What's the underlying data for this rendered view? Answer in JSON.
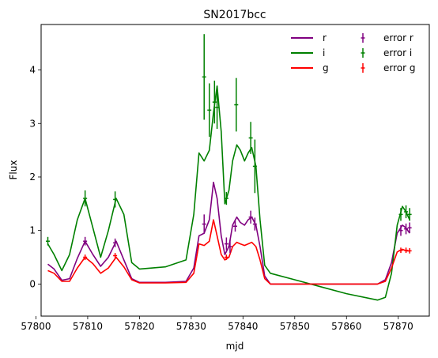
{
  "chart_data": {
    "type": "line",
    "title": "SN2017bcc",
    "xlabel": "mjd",
    "ylabel": "Flux",
    "xlim": [
      57801.0,
      57876.0
    ],
    "ylim": [
      -0.6,
      4.85
    ],
    "xticks": [
      57800,
      57810,
      57820,
      57830,
      57840,
      57850,
      57860,
      57870
    ],
    "xtick_labels": [
      "57800",
      "57810",
      "57820",
      "57830",
      "57840",
      "57850",
      "57860",
      "57870"
    ],
    "yticks": [
      0,
      1,
      2,
      3,
      4
    ],
    "ytick_labels": [
      "0",
      "1",
      "2",
      "3",
      "4"
    ],
    "grid": false,
    "legend": {
      "placement": "top-right",
      "entries": [
        {
          "label": "r",
          "color": "#800080",
          "kind": "line"
        },
        {
          "label": "i",
          "color": "#008000",
          "kind": "line"
        },
        {
          "label": "g",
          "color": "#ff0000",
          "kind": "line"
        },
        {
          "label": "error r",
          "color": "#800080",
          "kind": "errorbar"
        },
        {
          "label": "error i",
          "color": "#008000",
          "kind": "errorbar"
        },
        {
          "label": "error g",
          "color": "#ff0000",
          "kind": "errorbar"
        }
      ]
    },
    "series": [
      {
        "name": "r",
        "color": "#800080",
        "x": [
          57802.3,
          57803.5,
          57805,
          57806.5,
          57808,
          57809.5,
          57811,
          57812.5,
          57814,
          57815.5,
          57817,
          57818.5,
          57820,
          57825,
          57829,
          57830.5,
          57831.5,
          57832.5,
          57833.5,
          57834.3,
          57835,
          57835.8,
          57836.5,
          57837.3,
          57838,
          57838.8,
          57839.5,
          57840.3,
          57841,
          57841.7,
          57842.5,
          57843.3,
          57844.2,
          57845.3,
          57850,
          57855,
          57860,
          57866,
          57867.5,
          57868.7,
          57869.8,
          57870.8,
          57871.5,
          57872.2
        ],
        "y": [
          0.37,
          0.28,
          0.07,
          0.1,
          0.48,
          0.8,
          0.55,
          0.33,
          0.5,
          0.8,
          0.45,
          0.1,
          0.03,
          0.03,
          0.05,
          0.3,
          0.9,
          0.95,
          1.2,
          1.9,
          1.6,
          0.9,
          0.55,
          0.7,
          1.1,
          1.25,
          1.15,
          1.1,
          1.2,
          1.25,
          1.1,
          0.7,
          0.15,
          0.0,
          0.0,
          0.0,
          0.0,
          0.0,
          0.08,
          0.4,
          0.95,
          1.1,
          1.05,
          0.95
        ]
      },
      {
        "name": "i",
        "color": "#008000",
        "x": [
          57802.3,
          57803.5,
          57805,
          57806.5,
          57808,
          57809.5,
          57811,
          57812.5,
          57814,
          57815.5,
          57817,
          57818.5,
          57820,
          57825,
          57829,
          57830.5,
          57831.5,
          57832.5,
          57833.5,
          57834.3,
          57835,
          57835.8,
          57836.5,
          57837.3,
          57838,
          57838.8,
          57839.5,
          57840.3,
          57841,
          57841.7,
          57842.5,
          57843.3,
          57844.2,
          57845.3,
          57850,
          57855,
          57860,
          57866,
          57867.5,
          57868.7,
          57869.8,
          57870.8,
          57871.5,
          57872.2
        ],
        "y": [
          0.75,
          0.55,
          0.25,
          0.55,
          1.2,
          1.6,
          1.05,
          0.5,
          1.0,
          1.6,
          1.3,
          0.4,
          0.28,
          0.32,
          0.45,
          1.3,
          2.45,
          2.3,
          2.5,
          3.2,
          3.7,
          2.85,
          1.5,
          1.75,
          2.3,
          2.6,
          2.5,
          2.3,
          2.45,
          2.55,
          2.2,
          1.2,
          0.35,
          0.2,
          0.08,
          -0.05,
          -0.18,
          -0.3,
          -0.25,
          0.2,
          1.1,
          1.45,
          1.35,
          1.2
        ]
      },
      {
        "name": "g",
        "color": "#ff0000",
        "x": [
          57802.3,
          57803.5,
          57805,
          57806.5,
          57808,
          57809.5,
          57811,
          57812.5,
          57814,
          57815.5,
          57817,
          57818.5,
          57820,
          57825,
          57829,
          57830.5,
          57831.5,
          57832.5,
          57833.5,
          57834.3,
          57835,
          57835.8,
          57836.5,
          57837.3,
          57838,
          57838.8,
          57839.5,
          57840.3,
          57841,
          57841.7,
          57842.5,
          57843.3,
          57844.2,
          57845.3,
          57850,
          57855,
          57860,
          57866,
          57867.5,
          57868.7,
          57869.8,
          57870.8,
          57871.5,
          57872.2
        ],
        "y": [
          0.25,
          0.2,
          0.05,
          0.05,
          0.3,
          0.5,
          0.38,
          0.2,
          0.3,
          0.5,
          0.32,
          0.08,
          0.02,
          0.02,
          0.03,
          0.2,
          0.75,
          0.72,
          0.8,
          1.2,
          0.9,
          0.55,
          0.45,
          0.5,
          0.7,
          0.78,
          0.75,
          0.72,
          0.75,
          0.78,
          0.7,
          0.45,
          0.1,
          0.0,
          0.0,
          0.0,
          0.0,
          0.0,
          0.05,
          0.3,
          0.6,
          0.65,
          0.62,
          0.62
        ]
      }
    ],
    "errorbars": [
      {
        "name": "error r",
        "color": "#800080",
        "points": [
          {
            "x": 57809.5,
            "y": 0.8,
            "err": 0.08
          },
          {
            "x": 57815.3,
            "y": 0.77,
            "err": 0.08
          },
          {
            "x": 57832.5,
            "y": 1.12,
            "err": 0.18
          },
          {
            "x": 57836.8,
            "y": 0.75,
            "err": 0.12
          },
          {
            "x": 57837.5,
            "y": 0.7,
            "err": 0.12
          },
          {
            "x": 57838.5,
            "y": 1.08,
            "err": 0.1
          },
          {
            "x": 57841.5,
            "y": 1.25,
            "err": 0.12
          },
          {
            "x": 57842.3,
            "y": 1.12,
            "err": 0.12
          },
          {
            "x": 57870.5,
            "y": 1.0,
            "err": 0.1
          },
          {
            "x": 57871.5,
            "y": 1.03,
            "err": 0.1
          },
          {
            "x": 57872.2,
            "y": 1.05,
            "err": 0.1
          }
        ]
      },
      {
        "name": "error i",
        "color": "#008000",
        "points": [
          {
            "x": 57802.3,
            "y": 0.8,
            "err": 0.08
          },
          {
            "x": 57809.5,
            "y": 1.6,
            "err": 0.15
          },
          {
            "x": 57815.3,
            "y": 1.58,
            "err": 0.15
          },
          {
            "x": 57832.5,
            "y": 3.87,
            "err": 0.8
          },
          {
            "x": 57833.5,
            "y": 3.25,
            "err": 0.5
          },
          {
            "x": 57834.5,
            "y": 3.4,
            "err": 0.4
          },
          {
            "x": 57835.0,
            "y": 3.3,
            "err": 0.4
          },
          {
            "x": 57836.8,
            "y": 1.6,
            "err": 0.12
          },
          {
            "x": 57838.7,
            "y": 3.35,
            "err": 0.5
          },
          {
            "x": 57841.5,
            "y": 2.73,
            "err": 0.3
          },
          {
            "x": 57842.3,
            "y": 2.2,
            "err": 0.5
          },
          {
            "x": 57870.5,
            "y": 1.3,
            "err": 0.12
          },
          {
            "x": 57871.5,
            "y": 1.35,
            "err": 0.12
          },
          {
            "x": 57872.2,
            "y": 1.3,
            "err": 0.12
          }
        ]
      },
      {
        "name": "error g",
        "color": "#ff0000",
        "points": [
          {
            "x": 57809.5,
            "y": 0.5,
            "err": 0.05
          },
          {
            "x": 57815.3,
            "y": 0.53,
            "err": 0.05
          },
          {
            "x": 57836.8,
            "y": 0.5,
            "err": 0.05
          },
          {
            "x": 57870.5,
            "y": 0.63,
            "err": 0.05
          },
          {
            "x": 57871.5,
            "y": 0.63,
            "err": 0.05
          },
          {
            "x": 57872.2,
            "y": 0.62,
            "err": 0.05
          }
        ]
      }
    ]
  }
}
